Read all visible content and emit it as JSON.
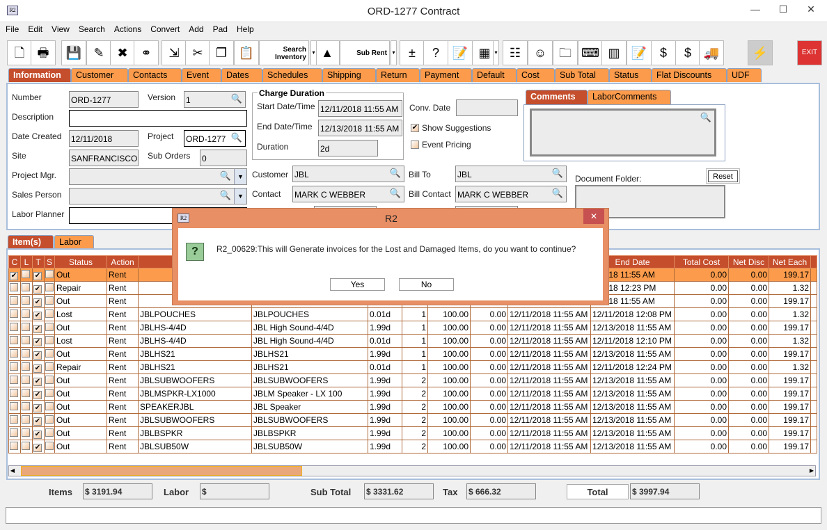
{
  "window": {
    "title": "ORD-1277 Contract",
    "app_icon": "R2",
    "minimize": "—",
    "maximize": "☐",
    "close": "✕"
  },
  "menu": [
    "File",
    "Edit",
    "View",
    "Search",
    "Actions",
    "Convert",
    "Add",
    "Pad",
    "Help"
  ],
  "toolbar": {
    "icons": [
      "new-icon",
      "print-icon",
      "save-icon",
      "edit-icon",
      "delete-icon",
      "binoculars-icon",
      "copy-transfer-icon",
      "cut-icon",
      "copy-icon",
      "paste-icon",
      "search-inventory-icon",
      "shapes-icon",
      "sub-rent-icon",
      "add-remove-icon",
      "help-circles-icon",
      "notepad-icon",
      "calendar-icon",
      "hierarchy-icon",
      "smiley-icon",
      "folder-clock-icon",
      "key-icon",
      "stack-icon",
      "edit-doc-icon",
      "payment-icon",
      "invoice-icon",
      "truck-icon",
      "lightning-icon",
      "exit-icon"
    ],
    "search_inventory": "Search Inventory",
    "sub_rent": "Sub Rent",
    "exit": "EXIT"
  },
  "tabs": [
    "Information",
    "Customer",
    "Contacts",
    "Event",
    "Dates",
    "Schedules",
    "Shipping",
    "Return",
    "Payment",
    "Default",
    "Cost",
    "Sub Total",
    "Status",
    "Flat Discounts",
    "UDF"
  ],
  "info": {
    "number_label": "Number",
    "number": "ORD-1277",
    "version_label": "Version",
    "version": "1",
    "description_label": "Description",
    "description": "",
    "date_created_label": "Date Created",
    "date_created": "12/11/2018",
    "project_label": "Project",
    "project": "ORD-1277",
    "site_label": "Site",
    "site": "SANFRANCISCO",
    "sub_orders_label": "Sub Orders",
    "sub_orders": "0",
    "project_mgr_label": "Project Mgr.",
    "project_mgr": "",
    "sales_person_label": "Sales Person",
    "sales_person": "",
    "labor_planner_label": "Labor Planner",
    "labor_planner": "",
    "charge_duration_title": "Charge Duration",
    "start_label": "Start Date/Time",
    "start": "12/11/2018 11:55 AM",
    "end_label": "End Date/Time",
    "end": "12/13/2018 11:55 AM",
    "duration_label": "Duration",
    "duration": "2d",
    "conv_date_label": "Conv. Date",
    "conv_date": "",
    "show_suggestions_label": "Show Suggestions",
    "show_suggestions": true,
    "event_pricing_label": "Event Pricing",
    "event_pricing": false,
    "customer_label": "Customer",
    "customer": "JBL",
    "contact_label": "Contact",
    "contact": "MARK C WEBBER",
    "bill_to_label": "Bill To",
    "bill_to": "JBL",
    "bill_contact_label": "Bill Contact",
    "bill_contact": "MARK C WEBBER",
    "comments_tabs": [
      "Comments",
      "LaborComments"
    ],
    "comments": "",
    "document_folder_label": "Document Folder:",
    "reset_label": "Reset"
  },
  "item_tabs": [
    "Item(s)",
    "Labor"
  ],
  "grid": {
    "headers": [
      "C",
      "L",
      "T",
      "S",
      "Status",
      "Action",
      "",
      "",
      "",
      "",
      "",
      "",
      "",
      "End Date",
      "Total Cost",
      "Net Disc",
      "Net Each"
    ],
    "rows": [
      {
        "c": true,
        "t": true,
        "status": "Out",
        "action": "Rent",
        "item": "",
        "desc": "",
        "dur": "",
        "qty": "",
        "rate": "",
        "disc": "",
        "start": "",
        "end": "3/2018 11:55 AM",
        "total": "0.00",
        "net_disc": "0.00",
        "net_each": "199.17"
      },
      {
        "c": false,
        "t": true,
        "status": "Repair",
        "action": "Rent",
        "item": "",
        "desc": "",
        "dur": "",
        "qty": "",
        "rate": "",
        "disc": "",
        "start": "",
        "end": "1/2018 12:23 PM",
        "total": "0.00",
        "net_disc": "0.00",
        "net_each": "1.32"
      },
      {
        "c": false,
        "t": true,
        "status": "Out",
        "action": "Rent",
        "item": "",
        "desc": "",
        "dur": "",
        "qty": "",
        "rate": "",
        "disc": "",
        "start": "",
        "end": "3/2018 11:55 AM",
        "total": "0.00",
        "net_disc": "0.00",
        "net_each": "199.17"
      },
      {
        "c": false,
        "t": true,
        "status": "Lost",
        "action": "Rent",
        "item": "JBLPOUCHES",
        "desc": "JBLPOUCHES",
        "dur": "0.01d",
        "qty": "1",
        "rate": "100.00",
        "disc": "0.00",
        "start": "12/11/2018 11:55 AM",
        "end": "12/11/2018 12:08 PM",
        "total": "0.00",
        "net_disc": "0.00",
        "net_each": "1.32"
      },
      {
        "c": false,
        "t": true,
        "status": "Out",
        "action": "Rent",
        "item": "JBLHS-4/4D",
        "desc": "JBL High Sound-4/4D",
        "dur": "1.99d",
        "qty": "1",
        "rate": "100.00",
        "disc": "0.00",
        "start": "12/11/2018 11:55 AM",
        "end": "12/13/2018 11:55 AM",
        "total": "0.00",
        "net_disc": "0.00",
        "net_each": "199.17"
      },
      {
        "c": false,
        "t": true,
        "status": "Lost",
        "action": "Rent",
        "item": "JBLHS-4/4D",
        "desc": "JBL High Sound-4/4D",
        "dur": "0.01d",
        "qty": "1",
        "rate": "100.00",
        "disc": "0.00",
        "start": "12/11/2018 11:55 AM",
        "end": "12/11/2018 12:10 PM",
        "total": "0.00",
        "net_disc": "0.00",
        "net_each": "1.32"
      },
      {
        "c": false,
        "t": true,
        "status": "Out",
        "action": "Rent",
        "item": "JBLHS21",
        "desc": "JBLHS21",
        "dur": "1.99d",
        "qty": "1",
        "rate": "100.00",
        "disc": "0.00",
        "start": "12/11/2018 11:55 AM",
        "end": "12/13/2018 11:55 AM",
        "total": "0.00",
        "net_disc": "0.00",
        "net_each": "199.17"
      },
      {
        "c": false,
        "t": true,
        "status": "Repair",
        "action": "Rent",
        "item": "JBLHS21",
        "desc": "JBLHS21",
        "dur": "0.01d",
        "qty": "1",
        "rate": "100.00",
        "disc": "0.00",
        "start": "12/11/2018 11:55 AM",
        "end": "12/11/2018 12:24 PM",
        "total": "0.00",
        "net_disc": "0.00",
        "net_each": "1.32"
      },
      {
        "c": false,
        "t": true,
        "status": "Out",
        "action": "Rent",
        "item": "JBLSUBWOOFERS",
        "desc": "JBLSUBWOOFERS",
        "dur": "1.99d",
        "qty": "2",
        "rate": "100.00",
        "disc": "0.00",
        "start": "12/11/2018 11:55 AM",
        "end": "12/13/2018 11:55 AM",
        "total": "0.00",
        "net_disc": "0.00",
        "net_each": "199.17"
      },
      {
        "c": false,
        "t": true,
        "status": "Out",
        "action": "Rent",
        "item": "JBLMSPKR-LX1000",
        "desc": "JBLM Speaker - LX 100",
        "dur": "1.99d",
        "qty": "2",
        "rate": "100.00",
        "disc": "0.00",
        "start": "12/11/2018 11:55 AM",
        "end": "12/13/2018 11:55 AM",
        "total": "0.00",
        "net_disc": "0.00",
        "net_each": "199.17"
      },
      {
        "c": false,
        "t": true,
        "status": "Out",
        "action": "Rent",
        "item": "SPEAKERJBL",
        "desc": "JBL Speaker",
        "dur": "1.99d",
        "qty": "2",
        "rate": "100.00",
        "disc": "0.00",
        "start": "12/11/2018 11:55 AM",
        "end": "12/13/2018 11:55 AM",
        "total": "0.00",
        "net_disc": "0.00",
        "net_each": "199.17"
      },
      {
        "c": false,
        "t": true,
        "status": "Out",
        "action": "Rent",
        "item": "JBLSUBWOOFERS",
        "desc": "JBLSUBWOOFERS",
        "dur": "1.99d",
        "qty": "2",
        "rate": "100.00",
        "disc": "0.00",
        "start": "12/11/2018 11:55 AM",
        "end": "12/13/2018 11:55 AM",
        "total": "0.00",
        "net_disc": "0.00",
        "net_each": "199.17"
      },
      {
        "c": false,
        "t": true,
        "status": "Out",
        "action": "Rent",
        "item": "JBLBSPKR",
        "desc": "JBLBSPKR",
        "dur": "1.99d",
        "qty": "2",
        "rate": "100.00",
        "disc": "0.00",
        "start": "12/11/2018 11:55 AM",
        "end": "12/13/2018 11:55 AM",
        "total": "0.00",
        "net_disc": "0.00",
        "net_each": "199.17"
      },
      {
        "c": false,
        "t": true,
        "status": "Out",
        "action": "Rent",
        "item": "JBLSUB50W",
        "desc": "JBLSUB50W",
        "dur": "1.99d",
        "qty": "2",
        "rate": "100.00",
        "disc": "0.00",
        "start": "12/11/2018 11:55 AM",
        "end": "12/13/2018 11:55 AM",
        "total": "0.00",
        "net_disc": "0.00",
        "net_each": "199.17"
      }
    ]
  },
  "totals": {
    "items_label": "Items",
    "items": "$ 3191.94",
    "labor_label": "Labor",
    "labor": "$",
    "sub_total_label": "Sub Total",
    "sub_total": "$ 3331.62",
    "tax_label": "Tax",
    "tax": "$ 666.32",
    "total_label": "Total",
    "total": "$ 3997.94"
  },
  "dialog": {
    "title": "R2",
    "icon": "R2",
    "message": "R2_00629:This will Generate invoices for the Lost and Damaged Items, do you want to continue?",
    "yes": "Yes",
    "no": "No",
    "close": "✕",
    "question_icon": "?"
  },
  "colors": {
    "accent": "#c54e2c",
    "tab": "#fb9b4b",
    "dialog": "#e88f65"
  }
}
